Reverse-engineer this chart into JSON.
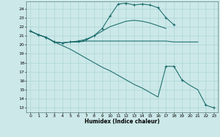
{
  "xlabel": "Humidex (Indice chaleur)",
  "bg_color": "#cce8e8",
  "grid_color": "#aad4d4",
  "line_color": "#1a6b6b",
  "xlim": [
    -0.5,
    23.5
  ],
  "ylim": [
    12.5,
    24.8
  ],
  "yticks": [
    13,
    14,
    15,
    16,
    17,
    18,
    19,
    20,
    21,
    22,
    23,
    24
  ],
  "xticks": [
    0,
    1,
    2,
    3,
    4,
    5,
    6,
    7,
    8,
    9,
    10,
    11,
    12,
    13,
    14,
    15,
    16,
    17,
    18,
    19,
    20,
    21,
    22,
    23
  ],
  "line1_x": [
    0,
    1,
    2,
    3,
    4,
    5,
    6,
    7,
    8,
    9,
    10,
    11,
    12,
    13,
    14,
    15,
    16,
    17,
    18,
    19,
    20,
    21
  ],
  "line1_y": [
    21.5,
    21.1,
    20.8,
    20.3,
    20.2,
    20.3,
    20.3,
    20.4,
    20.4,
    20.4,
    20.4,
    20.4,
    20.4,
    20.4,
    20.4,
    20.4,
    20.4,
    20.4,
    20.3,
    20.3,
    20.3,
    20.3
  ],
  "line2_x": [
    0,
    1,
    2,
    3,
    4,
    5,
    6,
    7,
    8,
    9,
    10,
    11,
    12,
    13,
    14,
    15,
    16,
    17
  ],
  "line2_y": [
    21.5,
    21.1,
    20.8,
    20.3,
    20.2,
    20.3,
    20.3,
    20.5,
    21.0,
    21.5,
    22.0,
    22.3,
    22.6,
    22.7,
    22.6,
    22.4,
    22.1,
    21.8
  ],
  "line3_x": [
    0,
    1,
    2,
    3,
    4,
    5,
    6,
    7,
    8,
    9,
    10,
    11,
    12,
    13,
    14,
    15,
    16,
    17,
    18
  ],
  "line3_y": [
    21.5,
    21.1,
    20.8,
    20.3,
    20.2,
    20.3,
    20.4,
    20.6,
    21.0,
    21.8,
    23.2,
    24.5,
    24.6,
    24.4,
    24.5,
    24.4,
    24.1,
    23.0,
    22.2
  ],
  "line4_x": [
    0,
    1,
    2,
    3,
    4,
    5,
    6,
    7,
    8,
    9,
    10,
    11,
    12,
    13,
    14,
    15,
    16,
    17,
    18,
    19,
    20,
    21,
    22,
    23
  ],
  "line4_y": [
    21.5,
    21.1,
    20.8,
    20.3,
    19.9,
    19.5,
    19.0,
    18.5,
    18.0,
    17.5,
    17.1,
    16.6,
    16.1,
    15.6,
    15.2,
    14.7,
    14.2,
    17.6,
    17.6,
    16.1,
    15.5,
    15.0,
    13.3,
    13.0
  ],
  "line4_marker_x": [
    0,
    1,
    2,
    3,
    17,
    18,
    19,
    22,
    23
  ],
  "line4_marker_y": [
    21.5,
    21.1,
    20.8,
    20.3,
    17.6,
    17.6,
    16.1,
    13.3,
    13.0
  ]
}
